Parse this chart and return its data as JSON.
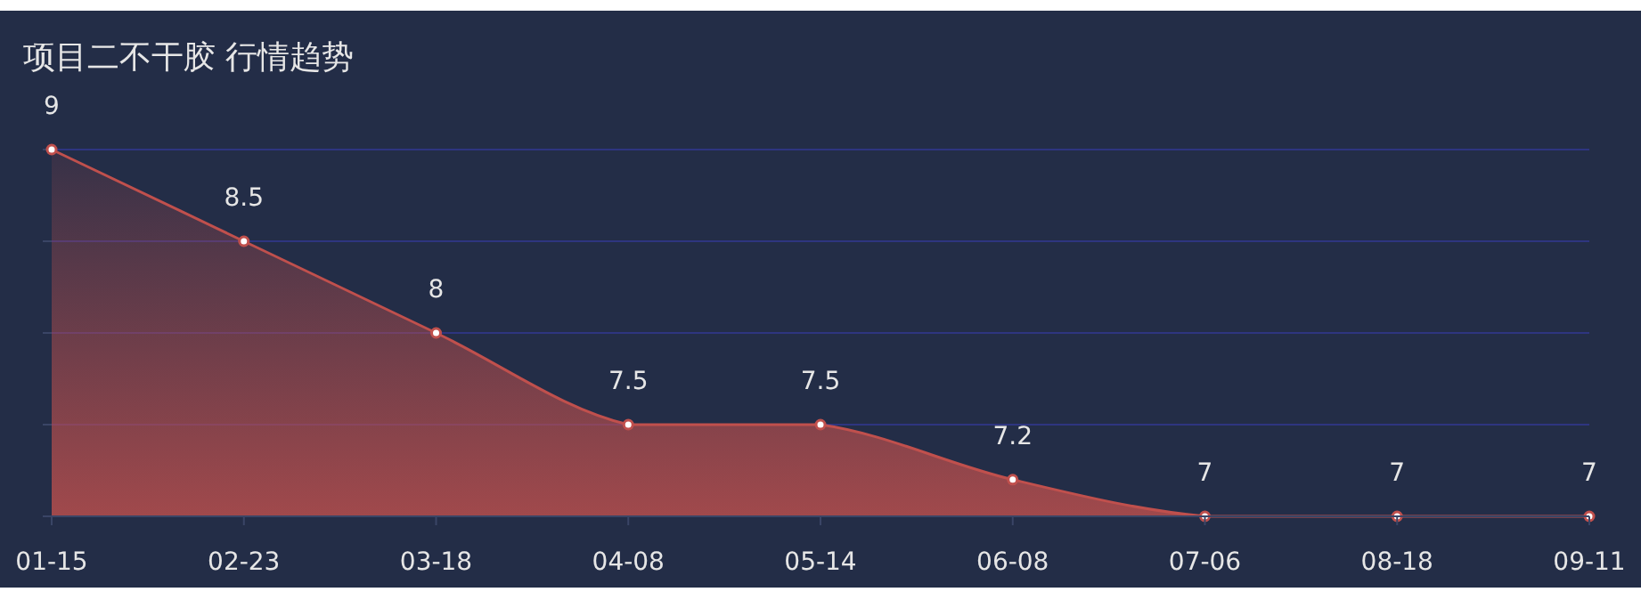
{
  "chart_data": {
    "type": "area",
    "title": "项目二不干胶 行情趋势",
    "categories": [
      "01-15",
      "02-23",
      "03-18",
      "04-08",
      "05-14",
      "06-08",
      "07-06",
      "08-18",
      "09-11"
    ],
    "series": [
      {
        "color": "#c0504d",
        "values": [
          9,
          8.5,
          8,
          7.5,
          7.5,
          7.2,
          7,
          7,
          7
        ]
      }
    ],
    "ylim": [
      7,
      9
    ],
    "yticks": [
      {
        "value": 7,
        "label": null
      },
      {
        "value": 7.5,
        "label": null
      },
      {
        "value": 8,
        "label": null
      },
      {
        "value": 8.5,
        "label": null
      },
      {
        "value": 9,
        "label": null
      }
    ],
    "grid": "y",
    "data_labels": true,
    "marker": "circle",
    "tick_labels": "x"
  }
}
